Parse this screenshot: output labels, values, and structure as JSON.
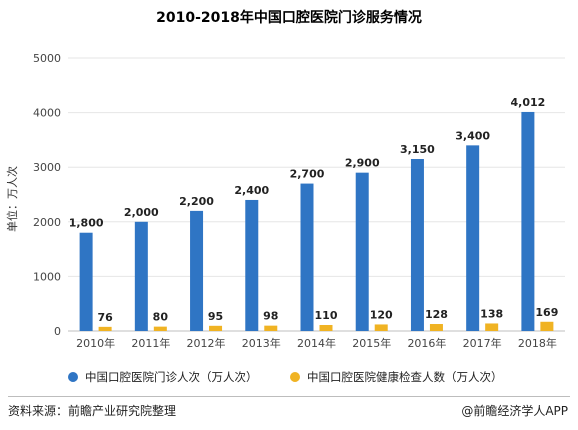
{
  "chart_data": {
    "type": "bar",
    "title": "2010-2018年中国口腔医院门诊服务情况",
    "ylabel": "单位：万人次",
    "xlabel": "",
    "ylim": [
      0,
      5000
    ],
    "yticks": [
      0,
      1000,
      2000,
      3000,
      4000,
      5000
    ],
    "grid": "horizontal",
    "legend_position": "bottom",
    "categories": [
      "2010年",
      "2011年",
      "2012年",
      "2013年",
      "2014年",
      "2015年",
      "2016年",
      "2017年",
      "2018年"
    ],
    "series": [
      {
        "name": "中国口腔医院门诊人次（万人次）",
        "color": "#2f75c4",
        "values": [
          1800,
          2000,
          2200,
          2400,
          2700,
          2900,
          3150,
          3400,
          4012
        ],
        "labels": [
          "1,800",
          "2,000",
          "2,200",
          "2,400",
          "2,700",
          "2,900",
          "3,150",
          "3,400",
          "4,012"
        ]
      },
      {
        "name": "中国口腔医院健康检查人数（万人次）",
        "color": "#f0b323",
        "values": [
          76,
          80,
          95,
          98,
          110,
          120,
          128,
          138,
          169
        ],
        "labels": [
          "76",
          "80",
          "95",
          "98",
          "110",
          "120",
          "128",
          "138",
          "169"
        ]
      }
    ]
  },
  "footer": {
    "source": "资料来源：前瞻产业研究院整理",
    "credit": "@前瞻经济学人APP"
  }
}
